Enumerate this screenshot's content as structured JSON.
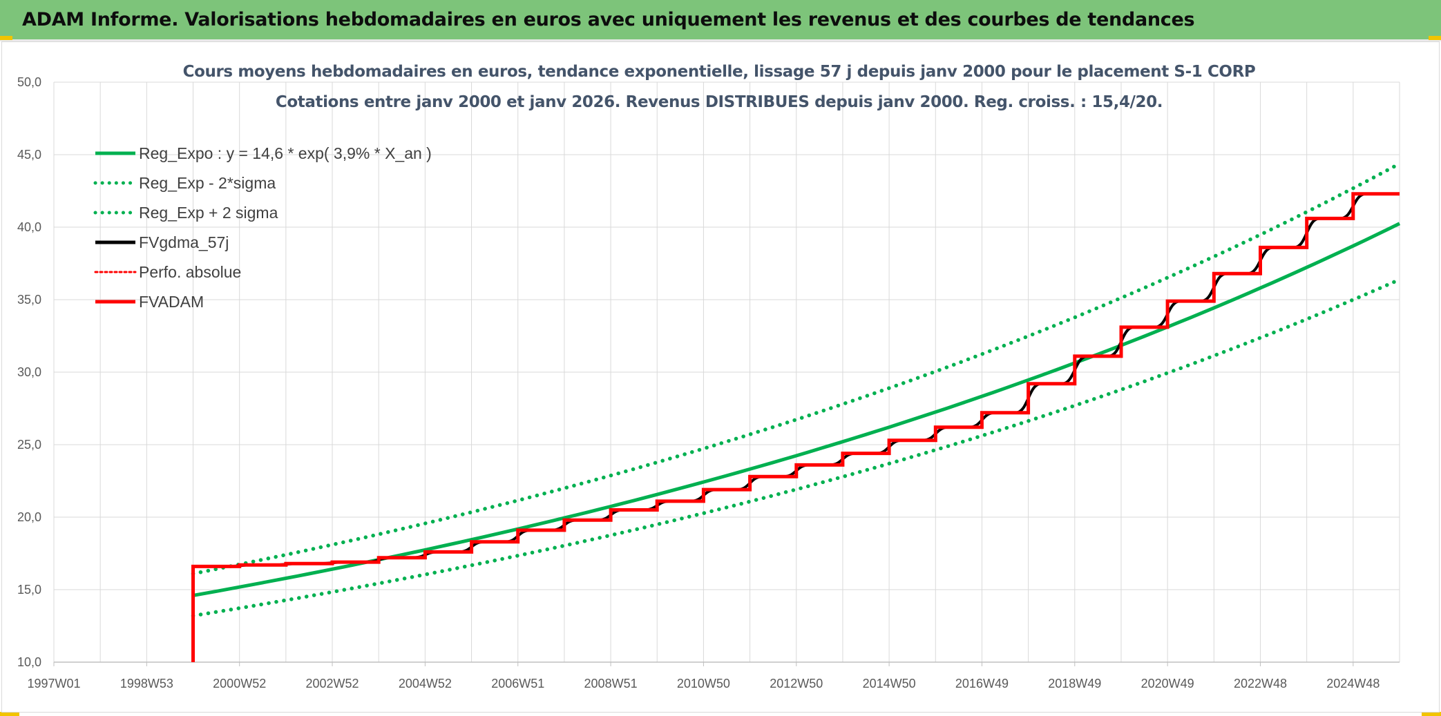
{
  "page": {
    "banner_title": "ADAM Informe. Valorisations hebdomadaires en euros avec uniquement les revenus et des courbes de tendances"
  },
  "chart_data": {
    "type": "line",
    "title": [
      "Cours moyens hebdomadaires en euros, tendance exponentielle, lissage 57 j depuis janv 2000 pour le placement S-1 CORP",
      "Cotations entre janv 2000 et janv 2026. Revenus DISTRIBUES depuis janv 2000. Reg. croiss. : 15,4/20."
    ],
    "xlabel": "",
    "ylabel": "",
    "x_range_years": [
      1997.0,
      2026.0
    ],
    "ylim": [
      10,
      50
    ],
    "y_ticks": [
      "10,0",
      "15,0",
      "20,0",
      "25,0",
      "30,0",
      "35,0",
      "40,0",
      "45,0",
      "50,0"
    ],
    "x_ticks": [
      {
        "label": "1997W01",
        "year": 1997.0
      },
      {
        "label": "1998W53",
        "year": 1999.0
      },
      {
        "label": "2000W52",
        "year": 2001.0
      },
      {
        "label": "2002W52",
        "year": 2003.0
      },
      {
        "label": "2004W52",
        "year": 2005.0
      },
      {
        "label": "2006W51",
        "year": 2007.0
      },
      {
        "label": "2008W51",
        "year": 2009.0
      },
      {
        "label": "2010W50",
        "year": 2011.0
      },
      {
        "label": "2012W50",
        "year": 2013.0
      },
      {
        "label": "2014W50",
        "year": 2015.0
      },
      {
        "label": "2016W49",
        "year": 2017.0
      },
      {
        "label": "2018W49",
        "year": 2019.0
      },
      {
        "label": "2020W49",
        "year": 2021.0
      },
      {
        "label": "2022W48",
        "year": 2023.0
      },
      {
        "label": "2024W48",
        "year": 2025.0
      }
    ],
    "grid": true,
    "legend_position": "top-left",
    "colors": {
      "green": "#00b050",
      "black": "#000000",
      "red": "#ff0000",
      "grid": "#d9d9d9",
      "banner": "#7dc47a"
    },
    "series": [
      {
        "name": "Reg_Expo : y = 14,6 * exp( 3,9% *  X_an )",
        "style": "solid",
        "color": "#00b050",
        "x": [
          2000.0,
          2026.0
        ],
        "y_formula": "14.6*exp(0.039*(x-2000))"
      },
      {
        "name": "Reg_Exp - 2*sigma",
        "style": "dotted",
        "color": "#00b050",
        "x": [
          2000.0,
          2026.0
        ],
        "y_formula": "13.2*exp(0.039*(x-2000))"
      },
      {
        "name": "Reg_Exp + 2 sigma",
        "style": "dotted",
        "color": "#00b050",
        "x": [
          2000.0,
          2026.0
        ],
        "y_formula": "16.1*exp(0.039*(x-2000))"
      },
      {
        "name": "FVgdma_57j",
        "style": "solid",
        "color": "#000000",
        "steps": [
          [
            2000.0,
            16.6
          ],
          [
            2001.0,
            16.7
          ],
          [
            2002.0,
            16.8
          ],
          [
            2003.0,
            16.9
          ],
          [
            2004.0,
            17.2
          ],
          [
            2005.0,
            17.6
          ],
          [
            2006.0,
            18.3
          ],
          [
            2007.0,
            19.1
          ],
          [
            2008.0,
            19.8
          ],
          [
            2009.0,
            20.5
          ],
          [
            2010.0,
            21.1
          ],
          [
            2011.0,
            21.9
          ],
          [
            2012.0,
            22.8
          ],
          [
            2013.0,
            23.6
          ],
          [
            2014.0,
            24.4
          ],
          [
            2015.0,
            25.3
          ],
          [
            2016.0,
            26.2
          ],
          [
            2017.0,
            27.2
          ],
          [
            2018.0,
            29.2
          ],
          [
            2019.0,
            31.1
          ],
          [
            2020.0,
            33.1
          ],
          [
            2021.0,
            34.9
          ],
          [
            2022.0,
            36.8
          ],
          [
            2023.0,
            38.6
          ],
          [
            2024.0,
            40.6
          ],
          [
            2025.0,
            42.3
          ]
        ],
        "x_end": 2026.0
      },
      {
        "name": "Perfo. absolue",
        "style": "dotted",
        "color": "#ff0000",
        "values": []
      },
      {
        "name": "FVADAM",
        "style": "solid",
        "color": "#ff0000",
        "start": [
          2000.0,
          10.0
        ],
        "steps": [
          [
            2000.0,
            16.6
          ],
          [
            2001.0,
            16.7
          ],
          [
            2002.0,
            16.8
          ],
          [
            2003.0,
            16.9
          ],
          [
            2004.0,
            17.2
          ],
          [
            2005.0,
            17.6
          ],
          [
            2006.0,
            18.3
          ],
          [
            2007.0,
            19.1
          ],
          [
            2008.0,
            19.8
          ],
          [
            2009.0,
            20.5
          ],
          [
            2010.0,
            21.1
          ],
          [
            2011.0,
            21.9
          ],
          [
            2012.0,
            22.8
          ],
          [
            2013.0,
            23.6
          ],
          [
            2014.0,
            24.4
          ],
          [
            2015.0,
            25.3
          ],
          [
            2016.0,
            26.2
          ],
          [
            2017.0,
            27.2
          ],
          [
            2018.0,
            29.2
          ],
          [
            2019.0,
            31.1
          ],
          [
            2020.0,
            33.1
          ],
          [
            2021.0,
            34.9
          ],
          [
            2022.0,
            36.8
          ],
          [
            2023.0,
            38.6
          ],
          [
            2024.0,
            40.6
          ],
          [
            2025.0,
            42.3
          ]
        ],
        "x_end": 2026.0
      }
    ]
  }
}
